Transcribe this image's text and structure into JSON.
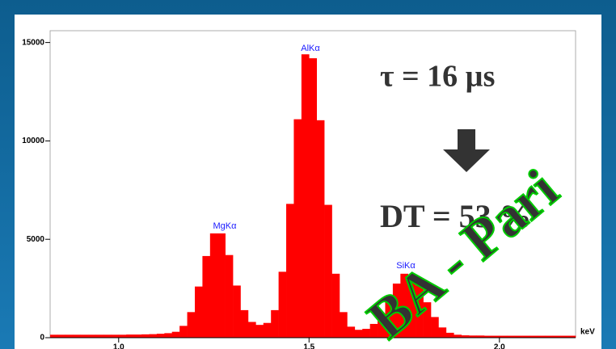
{
  "chart_data": {
    "type": "histogram",
    "bins": [
      0.82,
      0.84,
      0.86,
      0.88,
      0.9,
      0.92,
      0.94,
      0.96,
      0.98,
      1.0,
      1.02,
      1.04,
      1.06,
      1.08,
      1.1,
      1.12,
      1.14,
      1.16,
      1.18,
      1.2,
      1.22,
      1.24,
      1.26,
      1.28,
      1.3,
      1.32,
      1.34,
      1.36,
      1.38,
      1.4,
      1.42,
      1.44,
      1.46,
      1.48,
      1.5,
      1.52,
      1.54,
      1.56,
      1.58,
      1.6,
      1.62,
      1.64,
      1.66,
      1.68,
      1.7,
      1.72,
      1.74,
      1.76,
      1.78,
      1.8,
      1.82,
      1.84,
      1.86,
      1.88,
      1.9,
      1.92,
      1.94,
      1.96,
      1.98,
      2.0,
      2.02,
      2.04,
      2.06,
      2.08,
      2.1,
      2.12,
      2.14,
      2.16,
      2.18,
      2.2
    ],
    "values": [
      150,
      150,
      150,
      150,
      150,
      150,
      150,
      150,
      150,
      150,
      160,
      160,
      170,
      180,
      200,
      230,
      300,
      600,
      1300,
      2600,
      4150,
      5300,
      5300,
      4200,
      2650,
      1400,
      800,
      650,
      750,
      1400,
      3350,
      6800,
      11100,
      14400,
      14200,
      11050,
      6750,
      3250,
      1300,
      560,
      400,
      450,
      700,
      1200,
      1950,
      2750,
      3250,
      3200,
      2650,
      1800,
      1050,
      520,
      250,
      150,
      120,
      110,
      110,
      100,
      100,
      100,
      100,
      100,
      100,
      100,
      100,
      100,
      100,
      100,
      100
    ],
    "color": "#ff0000",
    "xlim": [
      0.82,
      2.2
    ],
    "xticks": [
      {
        "value": 1,
        "label": "1.0"
      },
      {
        "value": 1.5,
        "label": "1.5"
      },
      {
        "value": 2,
        "label": "2.0"
      }
    ],
    "ylim": [
      0,
      15600
    ],
    "yticks": [
      0,
      5000,
      10000,
      15000
    ],
    "x_label": "keV",
    "peak_labels": [
      "MgKα",
      "AlKα",
      "SiKα"
    ],
    "annotations": [
      "τ = 16 µs",
      "DT = 53 %"
    ],
    "watermark": "BA - Pari"
  }
}
